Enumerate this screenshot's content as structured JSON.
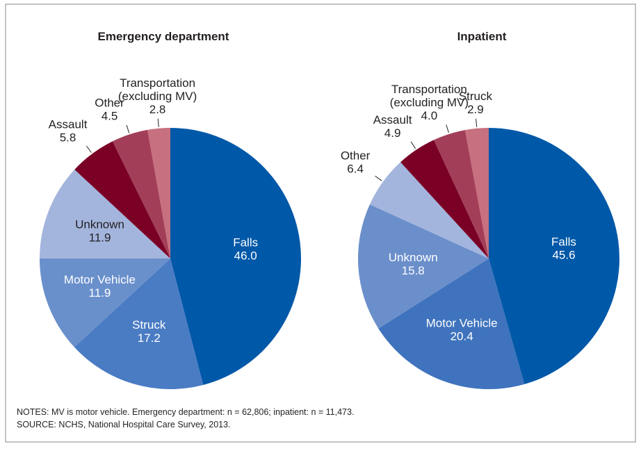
{
  "chart_data": [
    {
      "type": "pie",
      "title": "Emergency department",
      "categories": [
        "Falls",
        "Struck",
        "Motor Vehicle",
        "Unknown",
        "Assault",
        "Other",
        "Transportation (excluding MV)"
      ],
      "values": [
        46,
        17.2,
        11.9,
        11.9,
        5.8,
        4.5,
        2.8
      ],
      "value_labels": [
        "46.0",
        "17.2",
        "11.9",
        "11.9",
        "5.8",
        "4.5",
        "2.8"
      ],
      "colors": [
        "#0058a8",
        "#4a7cc4",
        "#6a90cc",
        "#a3b5dd",
        "#7a0026",
        "#a33e58",
        "#c7707f"
      ]
    },
    {
      "type": "pie",
      "title": "Inpatient",
      "categories": [
        "Falls",
        "Motor Vehicle",
        "Unknown",
        "Other",
        "Assault",
        "Transportation (excluding MV)",
        "Struck"
      ],
      "values": [
        45.6,
        20.4,
        15.8,
        6.4,
        4.9,
        4,
        2.9
      ],
      "value_labels": [
        "45.6",
        "20.4",
        "15.8",
        "6.4",
        "4.9",
        "4.0",
        "2.9"
      ],
      "colors": [
        "#0058a8",
        "#3f73bd",
        "#6b8fcb",
        "#a3b5dd",
        "#7a0026",
        "#a33e58",
        "#c7707f"
      ]
    }
  ],
  "notes": "NOTES: MV is motor vehicle. Emergency department: n = 62,806; inpatient: n = 11,473.",
  "source": "SOURCE: NCHS, National Hospital Care Survey, 2013."
}
